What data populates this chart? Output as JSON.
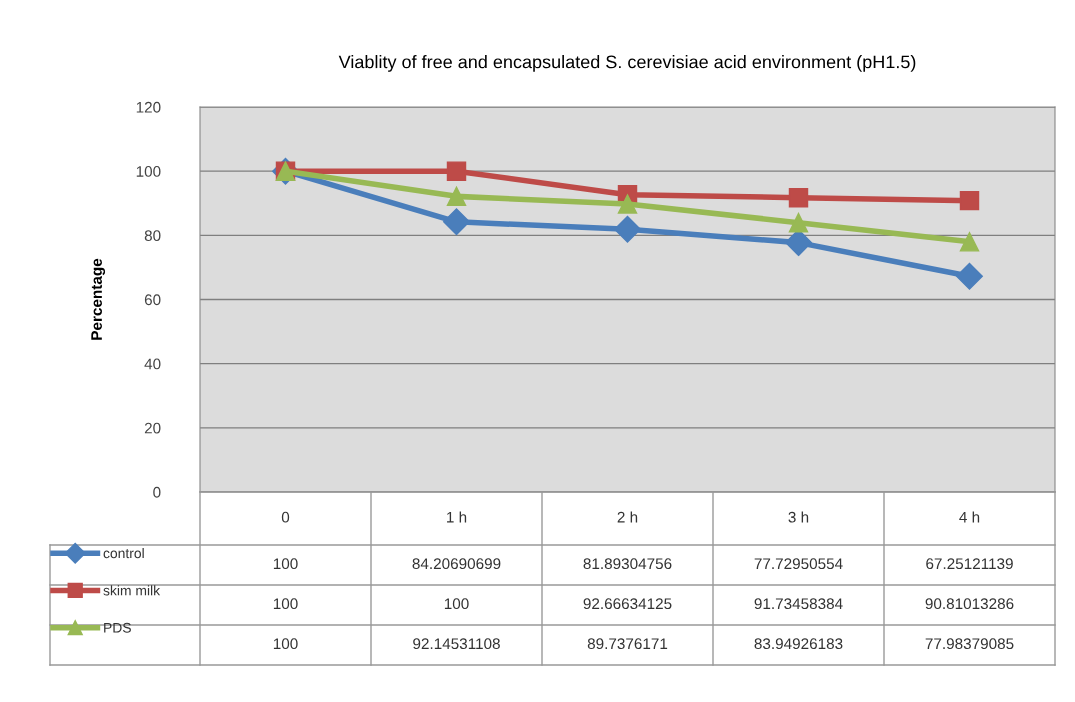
{
  "chart_data": {
    "type": "line",
    "title": "Viablity of free and encapsulated S. cerevisiae acid environment (pH1.5)",
    "ylabel": "Percentage",
    "categories": [
      "0",
      "1 h",
      "2 h",
      "3 h",
      "4 h"
    ],
    "series": [
      {
        "name": "control",
        "color": "#4a7ebb",
        "marker": "diamond",
        "values": [
          100,
          84.20690699,
          81.89304756,
          77.72950554,
          67.25121139
        ]
      },
      {
        "name": "skim milk",
        "color": "#be4b48",
        "marker": "square",
        "values": [
          100,
          100,
          92.66634125,
          91.73458384,
          90.81013286
        ]
      },
      {
        "name": "PDS",
        "color": "#98b954",
        "marker": "triangle",
        "values": [
          100,
          92.14531108,
          89.7376171,
          83.94926183,
          77.98379085
        ]
      }
    ],
    "ylim": [
      0,
      120
    ],
    "yticks": [
      0,
      20,
      40,
      60,
      80,
      100,
      120
    ],
    "grid": "y",
    "legend": "bottom left",
    "data_labels": true,
    "line_style": "solid"
  }
}
